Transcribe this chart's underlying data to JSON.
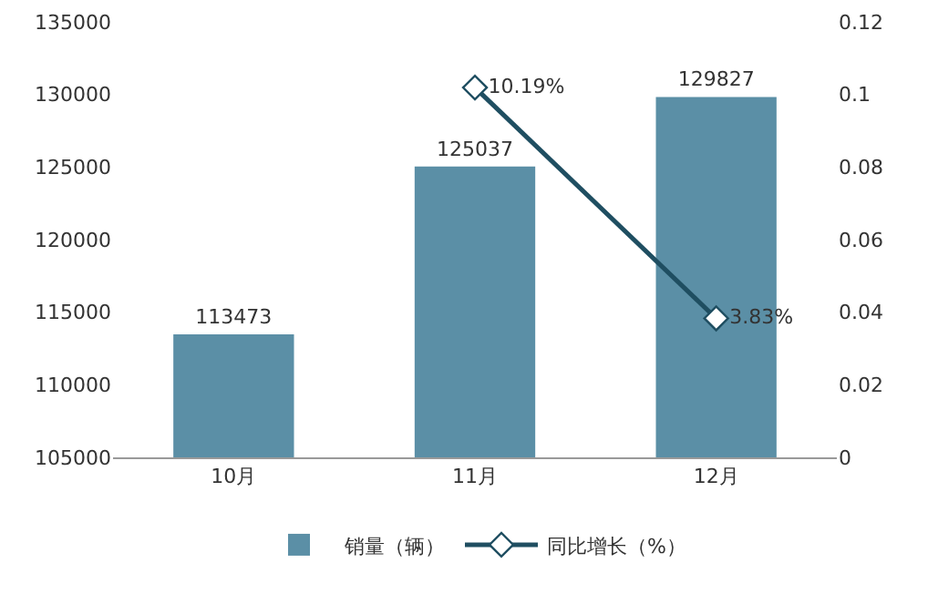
{
  "chart_data": {
    "type": "bar",
    "categories": [
      "10月",
      "11月",
      "12月"
    ],
    "series": [
      {
        "name": "销量（辆）",
        "color": "#5b8fa6",
        "values": [
          113473,
          125037,
          129827
        ],
        "value_labels": [
          "113473",
          "125037",
          "129827"
        ]
      },
      {
        "name": "同比增长（%）",
        "type": "line",
        "axis": "y2",
        "color": "#1f4e61",
        "values": [
          null,
          0.1019,
          0.0383
        ],
        "value_labels": [
          null,
          "10.19%",
          "3.83%"
        ]
      }
    ],
    "ylim": [
      105000,
      135000
    ],
    "yticks": [
      105000,
      110000,
      115000,
      120000,
      125000,
      130000,
      135000
    ],
    "y2lim": [
      0,
      0.12
    ],
    "y2ticks": [
      0,
      0.02,
      0.04,
      0.06,
      0.08,
      0.1,
      0.12
    ],
    "grid": false,
    "legend": "bottom",
    "marker": "diamond",
    "line_style": "solid"
  }
}
